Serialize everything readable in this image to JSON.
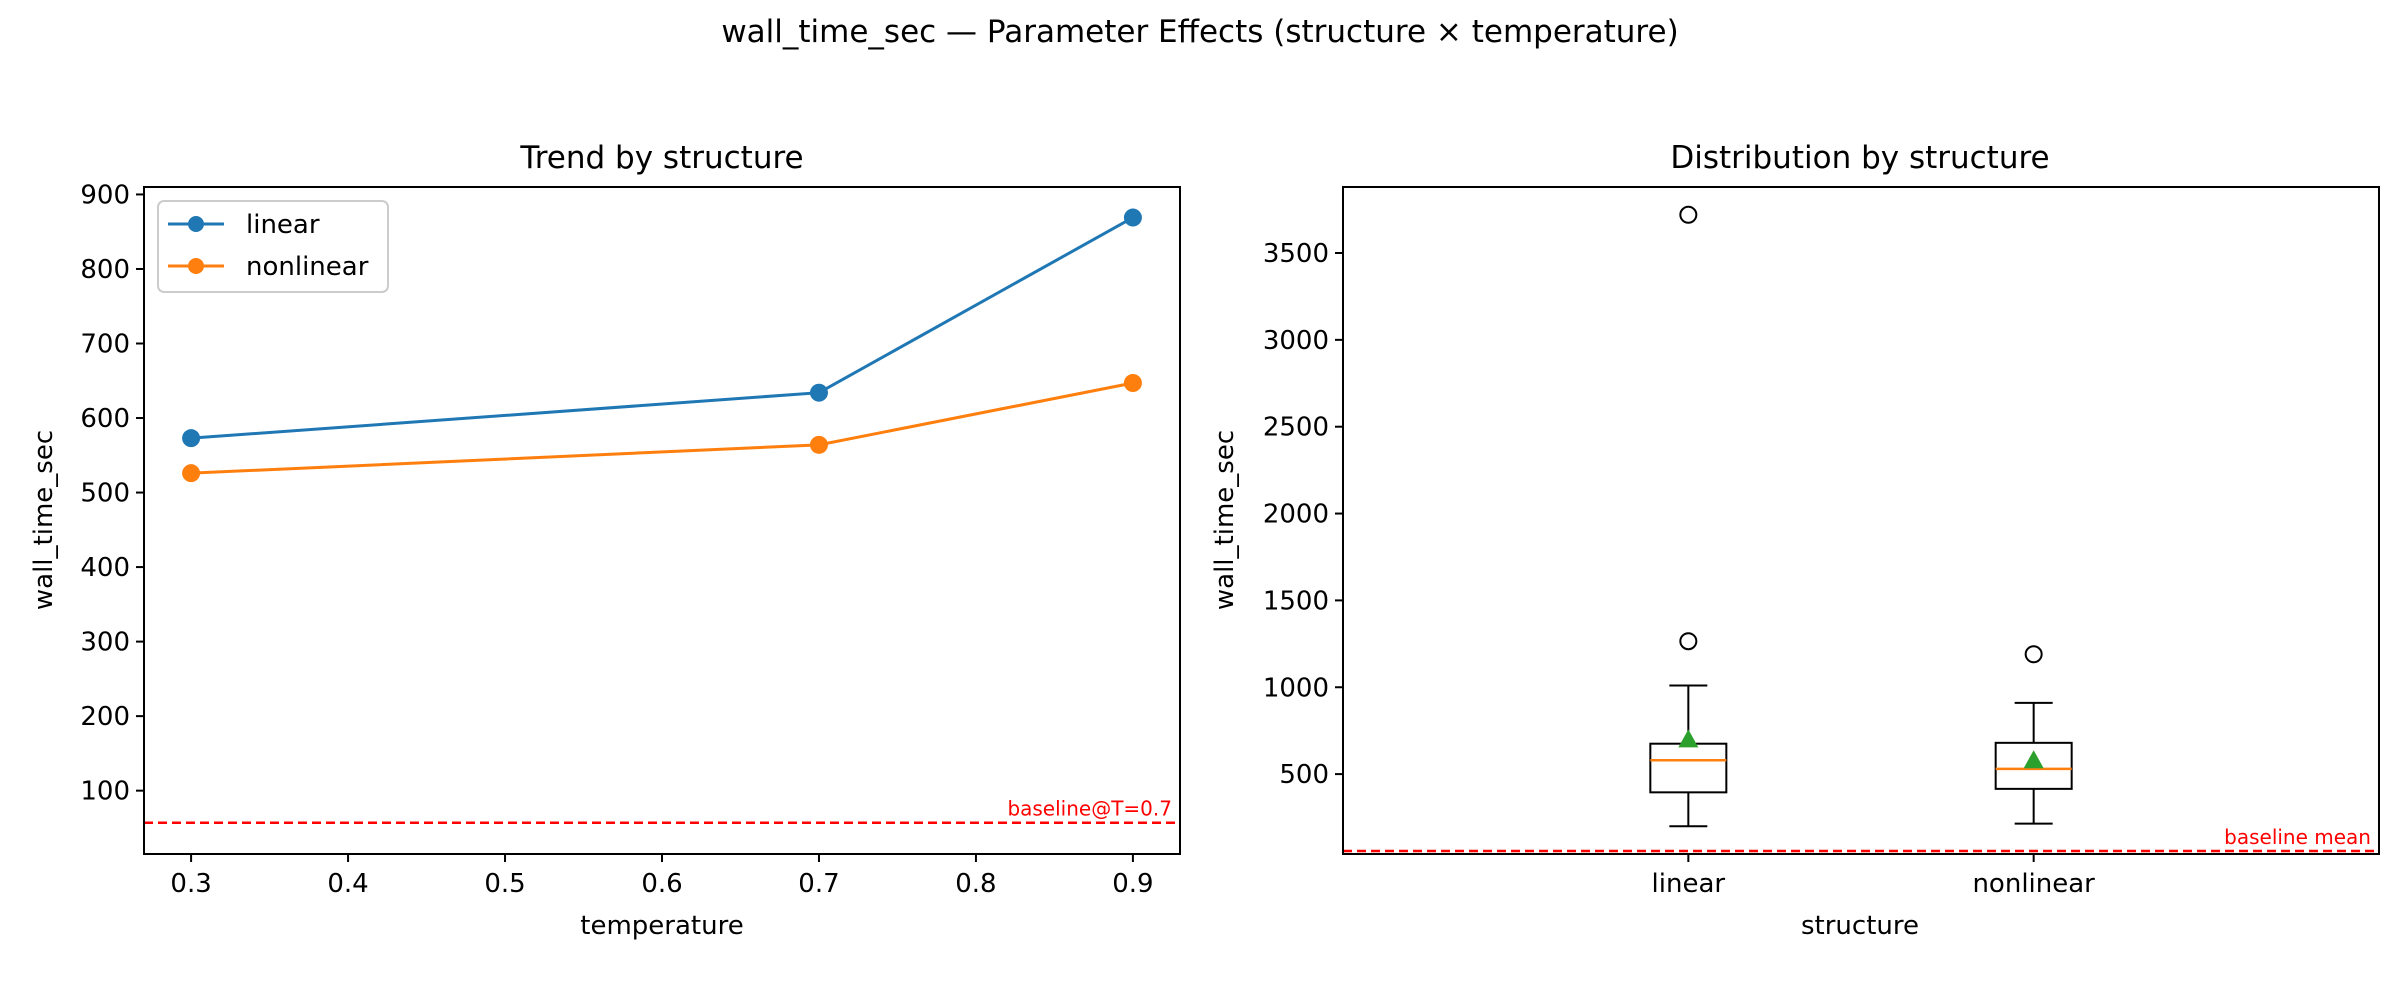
{
  "figure": {
    "suptitle": "wall_time_sec — Parameter Effects (structure × temperature)"
  },
  "chart_data": [
    {
      "type": "line",
      "title": "Trend by structure",
      "xlabel": "temperature",
      "ylabel": "wall_time_sec",
      "xlim": [
        0.27,
        0.93
      ],
      "ylim": [
        15,
        910
      ],
      "xticks": [
        0.3,
        0.4,
        0.5,
        0.6,
        0.7,
        0.8,
        0.9
      ],
      "xtick_labels": [
        "0.3",
        "0.4",
        "0.5",
        "0.6",
        "0.7",
        "0.8",
        "0.9"
      ],
      "yticks": [
        100,
        200,
        300,
        400,
        500,
        600,
        700,
        800,
        900
      ],
      "ytick_labels": [
        "100",
        "200",
        "300",
        "400",
        "500",
        "600",
        "700",
        "800",
        "900"
      ],
      "grid": false,
      "legend": "upper left",
      "series": [
        {
          "name": "linear",
          "color": "#1f77b4",
          "x": [
            0.3,
            0.7,
            0.9
          ],
          "y": [
            573,
            634,
            869
          ]
        },
        {
          "name": "nonlinear",
          "color": "#ff7f0e",
          "x": [
            0.3,
            0.7,
            0.9
          ],
          "y": [
            526,
            564,
            647
          ]
        }
      ],
      "baseline": {
        "value": 57,
        "label": "baseline@T=0.7",
        "color": "#ff0000",
        "style": "dashed"
      }
    },
    {
      "type": "box",
      "title": "Distribution by structure",
      "xlabel": "structure",
      "ylabel": "wall_time_sec",
      "categories": [
        "linear",
        "nonlinear"
      ],
      "ylim": [
        40,
        3880
      ],
      "yticks": [
        500,
        1000,
        1500,
        2000,
        2500,
        3000,
        3500
      ],
      "ytick_labels": [
        "500",
        "1000",
        "1500",
        "2000",
        "2500",
        "3000",
        "3500"
      ],
      "grid": false,
      "boxes": [
        {
          "category": "linear",
          "whisker_low": 200,
          "q1": 395,
          "median": 580,
          "q3": 675,
          "whisker_high": 1010,
          "mean": 700,
          "outliers": [
            1265,
            3720
          ]
        },
        {
          "category": "nonlinear",
          "whisker_low": 215,
          "q1": 415,
          "median": 530,
          "q3": 680,
          "whisker_high": 910,
          "mean": 580,
          "outliers": [
            1190
          ]
        }
      ],
      "colors": {
        "box": "#000000",
        "median": "#ff7f0e",
        "mean": "#2ca02c"
      },
      "baseline": {
        "value": 57,
        "label": "baseline mean",
        "color": "#ff0000",
        "style": "dashed"
      }
    }
  ]
}
